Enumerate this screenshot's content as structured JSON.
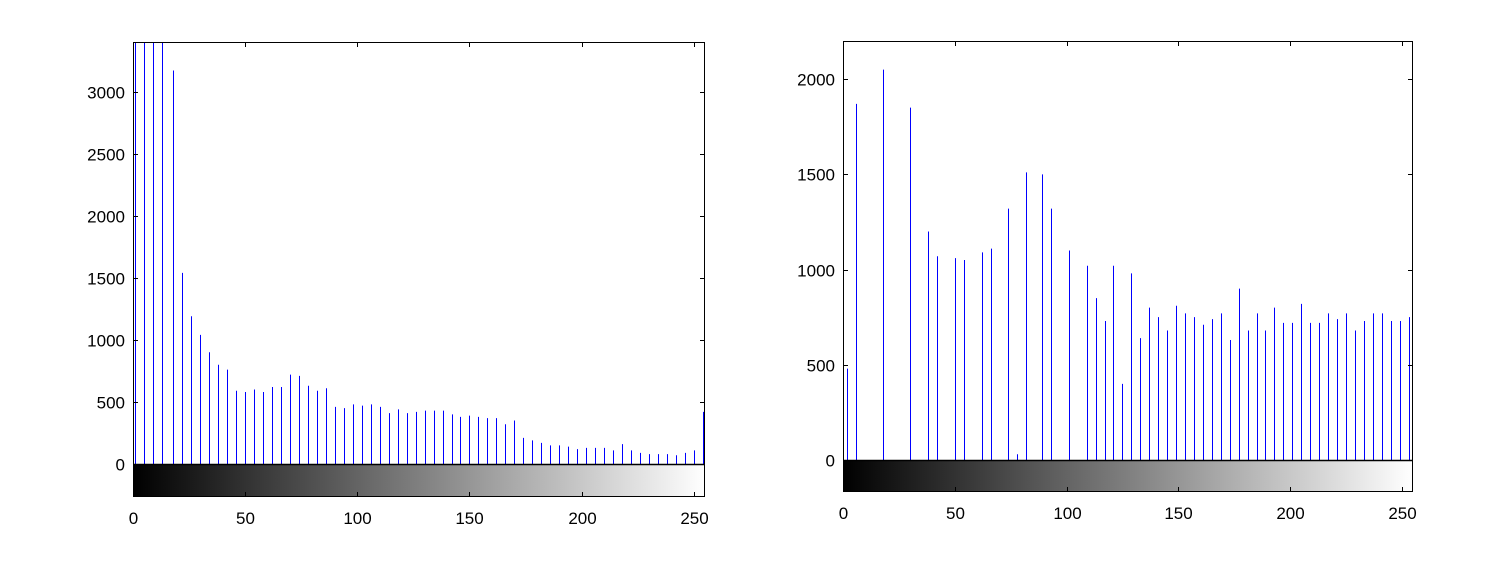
{
  "figure": {
    "background": "#ffffff",
    "bar_color": "#0000ff",
    "frame_color": "#000000"
  },
  "chart_data": [
    {
      "type": "bar",
      "title": "",
      "xlabel": "",
      "ylabel": "",
      "xlim": [
        0,
        255
      ],
      "ylim": [
        0,
        3400
      ],
      "grid": false,
      "colorbar": "grayscale gradient 0-255 below x-axis",
      "xticks": [
        "0",
        "50",
        "100",
        "150",
        "200",
        "250"
      ],
      "yticks": [
        "0",
        "500",
        "1000",
        "1500",
        "2000",
        "2500",
        "3000"
      ],
      "x": [
        1,
        5,
        9,
        13,
        18,
        22,
        26,
        30,
        34,
        38,
        42,
        46,
        50,
        54,
        58,
        62,
        66,
        70,
        74,
        78,
        82,
        86,
        90,
        94,
        98,
        102,
        106,
        110,
        114,
        118,
        122,
        126,
        130,
        134,
        138,
        142,
        146,
        150,
        154,
        158,
        162,
        166,
        170,
        174,
        178,
        182,
        186,
        190,
        194,
        198,
        202,
        206,
        210,
        214,
        218,
        222,
        226,
        230,
        234,
        238,
        242,
        246,
        250,
        254
      ],
      "values": [
        3450,
        3450,
        3450,
        3450,
        3170,
        1540,
        1190,
        1040,
        900,
        800,
        760,
        590,
        580,
        600,
        580,
        620,
        620,
        720,
        710,
        630,
        590,
        610,
        460,
        450,
        480,
        470,
        480,
        460,
        410,
        440,
        410,
        420,
        430,
        430,
        430,
        400,
        380,
        390,
        380,
        370,
        370,
        320,
        350,
        210,
        190,
        170,
        150,
        150,
        140,
        120,
        130,
        130,
        130,
        110,
        160,
        110,
        90,
        80,
        80,
        80,
        70,
        90,
        110,
        420
      ]
    },
    {
      "type": "bar",
      "title": "",
      "xlabel": "",
      "ylabel": "",
      "xlim": [
        0,
        255
      ],
      "ylim": [
        0,
        2200
      ],
      "grid": false,
      "colorbar": "grayscale gradient 0-255 below x-axis",
      "xticks": [
        "0",
        "50",
        "100",
        "150",
        "200",
        "250"
      ],
      "yticks": [
        "0",
        "500",
        "1000",
        "1500",
        "2000"
      ],
      "x": [
        2,
        6,
        18,
        30,
        38,
        42,
        50,
        54,
        62,
        66,
        74,
        78,
        82,
        89,
        93,
        101,
        109,
        113,
        117,
        121,
        125,
        129,
        133,
        137,
        141,
        145,
        149,
        153,
        157,
        161,
        165,
        169,
        173,
        177,
        181,
        185,
        189,
        193,
        197,
        201,
        205,
        209,
        213,
        217,
        221,
        225,
        229,
        233,
        237,
        241,
        245,
        249,
        253
      ],
      "values": [
        480,
        1870,
        2050,
        1850,
        1200,
        1070,
        1060,
        1050,
        1090,
        1110,
        1320,
        30,
        1510,
        1500,
        1320,
        1100,
        1020,
        850,
        730,
        1020,
        400,
        980,
        640,
        800,
        750,
        680,
        810,
        770,
        750,
        710,
        740,
        770,
        630,
        900,
        680,
        770,
        680,
        800,
        720,
        720,
        820,
        720,
        720,
        770,
        740,
        770,
        680,
        730,
        770,
        770,
        730,
        730,
        750
      ]
    }
  ]
}
